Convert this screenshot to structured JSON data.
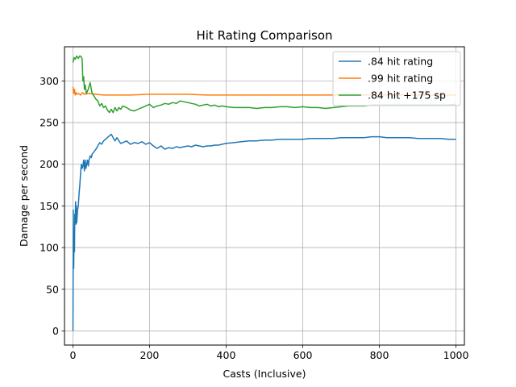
{
  "chart_data": {
    "type": "line",
    "title": "Hit Rating Comparison",
    "xlabel": "Casts (Inclusive)",
    "ylabel": "Damage per second",
    "xlim": [
      -22,
      1022
    ],
    "ylim": [
      -17,
      341
    ],
    "xticks": [
      0,
      200,
      400,
      600,
      800,
      1000
    ],
    "yticks": [
      0,
      50,
      100,
      150,
      200,
      250,
      300
    ],
    "grid": true,
    "legend_position": "top-right",
    "series": [
      {
        "name": ".84 hit rating",
        "color": "#1f77b4",
        "points": [
          [
            0,
            0
          ],
          [
            1,
            145
          ],
          [
            2,
            75
          ],
          [
            3,
            120
          ],
          [
            4,
            95
          ],
          [
            5,
            140
          ],
          [
            6,
            130
          ],
          [
            7,
            155
          ],
          [
            8,
            128
          ],
          [
            9,
            150
          ],
          [
            10,
            130
          ],
          [
            12,
            145
          ],
          [
            14,
            150
          ],
          [
            16,
            165
          ],
          [
            18,
            175
          ],
          [
            20,
            190
          ],
          [
            22,
            200
          ],
          [
            24,
            195
          ],
          [
            26,
            198
          ],
          [
            28,
            205
          ],
          [
            30,
            192
          ],
          [
            32,
            205
          ],
          [
            34,
            195
          ],
          [
            36,
            200
          ],
          [
            38,
            205
          ],
          [
            40,
            198
          ],
          [
            42,
            205
          ],
          [
            45,
            210
          ],
          [
            48,
            208
          ],
          [
            50,
            212
          ],
          [
            55,
            215
          ],
          [
            60,
            218
          ],
          [
            65,
            222
          ],
          [
            70,
            226
          ],
          [
            75,
            224
          ],
          [
            80,
            228
          ],
          [
            85,
            230
          ],
          [
            90,
            232
          ],
          [
            95,
            234
          ],
          [
            100,
            236
          ],
          [
            105,
            232
          ],
          [
            110,
            228
          ],
          [
            115,
            232
          ],
          [
            120,
            228
          ],
          [
            125,
            225
          ],
          [
            130,
            226
          ],
          [
            140,
            228
          ],
          [
            150,
            224
          ],
          [
            160,
            226
          ],
          [
            170,
            225
          ],
          [
            180,
            227
          ],
          [
            190,
            224
          ],
          [
            200,
            226
          ],
          [
            210,
            222
          ],
          [
            220,
            219
          ],
          [
            230,
            222
          ],
          [
            240,
            218
          ],
          [
            250,
            220
          ],
          [
            260,
            219
          ],
          [
            270,
            221
          ],
          [
            280,
            220
          ],
          [
            290,
            221
          ],
          [
            300,
            222
          ],
          [
            310,
            221
          ],
          [
            320,
            223
          ],
          [
            330,
            222
          ],
          [
            340,
            221
          ],
          [
            350,
            222
          ],
          [
            360,
            222
          ],
          [
            370,
            223
          ],
          [
            380,
            223
          ],
          [
            390,
            224
          ],
          [
            400,
            225
          ],
          [
            420,
            226
          ],
          [
            440,
            227
          ],
          [
            460,
            228
          ],
          [
            480,
            228
          ],
          [
            500,
            229
          ],
          [
            520,
            229
          ],
          [
            540,
            230
          ],
          [
            560,
            230
          ],
          [
            580,
            230
          ],
          [
            600,
            230
          ],
          [
            620,
            231
          ],
          [
            640,
            231
          ],
          [
            660,
            231
          ],
          [
            680,
            231
          ],
          [
            700,
            232
          ],
          [
            720,
            232
          ],
          [
            740,
            232
          ],
          [
            760,
            232
          ],
          [
            780,
            233
          ],
          [
            800,
            233
          ],
          [
            820,
            232
          ],
          [
            840,
            232
          ],
          [
            860,
            232
          ],
          [
            880,
            232
          ],
          [
            900,
            231
          ],
          [
            920,
            231
          ],
          [
            940,
            231
          ],
          [
            960,
            231
          ],
          [
            980,
            230
          ],
          [
            1000,
            230
          ]
        ]
      },
      {
        "name": ".99 hit rating",
        "color": "#ff7f0e",
        "points": [
          [
            0,
            293
          ],
          [
            2,
            285
          ],
          [
            4,
            290
          ],
          [
            6,
            283
          ],
          [
            8,
            286
          ],
          [
            10,
            284
          ],
          [
            15,
            285
          ],
          [
            20,
            283
          ],
          [
            25,
            286
          ],
          [
            30,
            284
          ],
          [
            40,
            285
          ],
          [
            60,
            284
          ],
          [
            80,
            283
          ],
          [
            100,
            283
          ],
          [
            150,
            283
          ],
          [
            200,
            284
          ],
          [
            250,
            284
          ],
          [
            300,
            284
          ],
          [
            350,
            283
          ],
          [
            400,
            283
          ],
          [
            450,
            283
          ],
          [
            500,
            283
          ],
          [
            550,
            283
          ],
          [
            600,
            283
          ],
          [
            650,
            283
          ],
          [
            700,
            283
          ],
          [
            750,
            283
          ],
          [
            800,
            283
          ],
          [
            850,
            283
          ],
          [
            900,
            283
          ],
          [
            950,
            283
          ],
          [
            1000,
            283
          ]
        ]
      },
      {
        "name": ".84 hit +175 sp",
        "color": "#2ca02c",
        "points": [
          [
            0,
            322
          ],
          [
            3,
            328
          ],
          [
            6,
            326
          ],
          [
            10,
            330
          ],
          [
            14,
            327
          ],
          [
            18,
            330
          ],
          [
            22,
            329
          ],
          [
            24,
            326
          ],
          [
            26,
            300
          ],
          [
            28,
            305
          ],
          [
            30,
            290
          ],
          [
            32,
            295
          ],
          [
            35,
            285
          ],
          [
            40,
            290
          ],
          [
            45,
            298
          ],
          [
            50,
            285
          ],
          [
            55,
            282
          ],
          [
            60,
            278
          ],
          [
            65,
            276
          ],
          [
            70,
            270
          ],
          [
            75,
            273
          ],
          [
            80,
            268
          ],
          [
            85,
            270
          ],
          [
            90,
            265
          ],
          [
            95,
            262
          ],
          [
            100,
            266
          ],
          [
            105,
            262
          ],
          [
            110,
            268
          ],
          [
            115,
            264
          ],
          [
            120,
            268
          ],
          [
            125,
            266
          ],
          [
            130,
            270
          ],
          [
            140,
            268
          ],
          [
            150,
            265
          ],
          [
            160,
            264
          ],
          [
            170,
            266
          ],
          [
            180,
            268
          ],
          [
            190,
            270
          ],
          [
            200,
            272
          ],
          [
            210,
            268
          ],
          [
            220,
            270
          ],
          [
            230,
            271
          ],
          [
            240,
            273
          ],
          [
            250,
            272
          ],
          [
            260,
            274
          ],
          [
            270,
            273
          ],
          [
            280,
            276
          ],
          [
            290,
            275
          ],
          [
            300,
            274
          ],
          [
            310,
            273
          ],
          [
            320,
            272
          ],
          [
            330,
            270
          ],
          [
            340,
            271
          ],
          [
            350,
            272
          ],
          [
            360,
            270
          ],
          [
            370,
            271
          ],
          [
            380,
            269
          ],
          [
            390,
            270
          ],
          [
            400,
            269
          ],
          [
            420,
            268
          ],
          [
            440,
            268
          ],
          [
            460,
            268
          ],
          [
            480,
            267
          ],
          [
            500,
            268
          ],
          [
            520,
            268
          ],
          [
            540,
            269
          ],
          [
            560,
            269
          ],
          [
            580,
            268
          ],
          [
            600,
            269
          ],
          [
            620,
            268
          ],
          [
            640,
            268
          ],
          [
            660,
            267
          ],
          [
            680,
            268
          ],
          [
            700,
            269
          ],
          [
            720,
            270
          ],
          [
            740,
            270
          ],
          [
            760,
            270
          ],
          [
            780,
            271
          ],
          [
            800,
            271
          ],
          [
            820,
            271
          ],
          [
            840,
            271
          ],
          [
            860,
            271
          ],
          [
            880,
            271
          ],
          [
            900,
            271
          ],
          [
            920,
            271
          ],
          [
            940,
            271
          ],
          [
            960,
            271
          ],
          [
            980,
            271
          ],
          [
            1000,
            272
          ]
        ]
      }
    ]
  }
}
